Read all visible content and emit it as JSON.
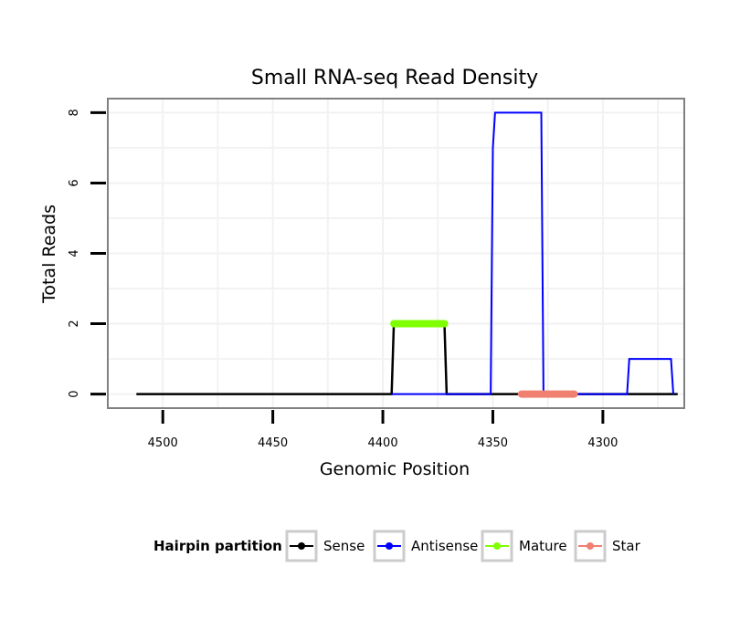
{
  "chart_data": {
    "type": "line",
    "title": "Small RNA-seq Read Density",
    "xlabel": "Genomic Position",
    "ylabel": "Total Reads",
    "x_reversed": true,
    "xlim": [
      4525,
      4263
    ],
    "ylim": [
      -0.4,
      8.4
    ],
    "x_ticks": [
      4500,
      4450,
      4400,
      4350,
      4300
    ],
    "x_tick_labels": [
      "4500",
      "4450",
      "4400",
      "4350",
      "4300"
    ],
    "y_ticks": [
      0,
      2,
      4,
      6,
      8
    ],
    "y_tick_labels": [
      "0",
      "2",
      "4",
      "6",
      "8"
    ],
    "grid": true,
    "series": [
      {
        "name": "Sense",
        "color": "#000000",
        "width": 2.5,
        "x": [
          4512,
          4396,
          4395,
          4372,
          4371,
          4266
        ],
        "y": [
          0,
          0,
          2,
          2,
          0,
          0
        ]
      },
      {
        "name": "Antisense",
        "color": "#0000ff",
        "width": 2,
        "x": [
          4396,
          4351,
          4350,
          4349,
          4328,
          4327,
          4289,
          4288,
          4269,
          4268
        ],
        "y": [
          0,
          0,
          7,
          8,
          8,
          0,
          0,
          1,
          1,
          0
        ]
      },
      {
        "name": "Mature",
        "color": "#7fff00",
        "width": 8,
        "x": [
          4395,
          4372
        ],
        "y": [
          2,
          2
        ]
      },
      {
        "name": "Star",
        "color": "#f08070",
        "width": 8,
        "x": [
          4337,
          4313
        ],
        "y": [
          0,
          0
        ]
      }
    ],
    "legend": {
      "title": "Hairpin partition",
      "position": "bottom",
      "entries": [
        {
          "label": "Sense",
          "color": "#000000"
        },
        {
          "label": "Antisense",
          "color": "#0000ff"
        },
        {
          "label": "Mature",
          "color": "#7fff00"
        },
        {
          "label": "Star",
          "color": "#f08070"
        }
      ]
    }
  }
}
